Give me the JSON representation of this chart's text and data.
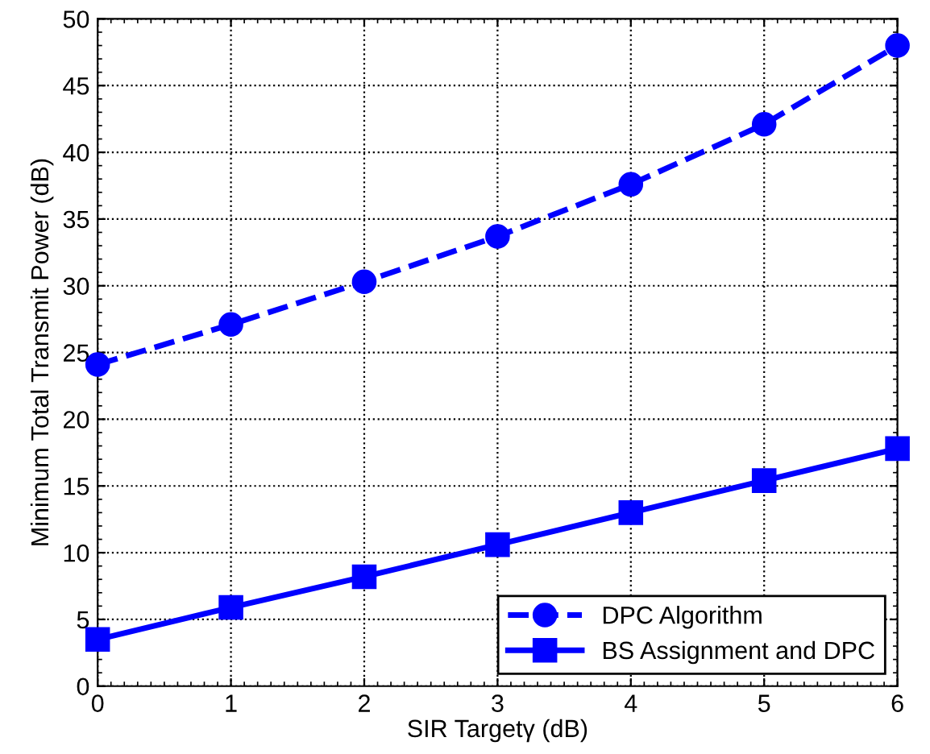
{
  "chart_data": {
    "type": "line",
    "xlabel": "SIR Targetγ (dB)",
    "ylabel": "Minimum Total Transmit Power (dB)",
    "x": [
      0,
      1,
      2,
      3,
      4,
      5,
      6
    ],
    "series": [
      {
        "name": "DPC Algorithm",
        "color": "#0000ff",
        "marker": "circle",
        "line_style": "dashed",
        "values": [
          24.1,
          27.1,
          30.3,
          33.7,
          37.6,
          42.1,
          48.0
        ]
      },
      {
        "name": "BS Assignment and DPC",
        "color": "#0000ff",
        "marker": "square",
        "line_style": "solid",
        "values": [
          3.5,
          5.9,
          8.2,
          10.6,
          13.0,
          15.4,
          17.8
        ]
      }
    ],
    "xlim": [
      0,
      6
    ],
    "xticks": [
      0,
      1,
      2,
      3,
      4,
      5,
      6
    ],
    "ylim": [
      0,
      50
    ],
    "yticks": [
      0,
      5,
      10,
      15,
      20,
      25,
      30,
      35,
      40,
      45,
      50
    ],
    "grid": true,
    "legend": "bottom right"
  }
}
